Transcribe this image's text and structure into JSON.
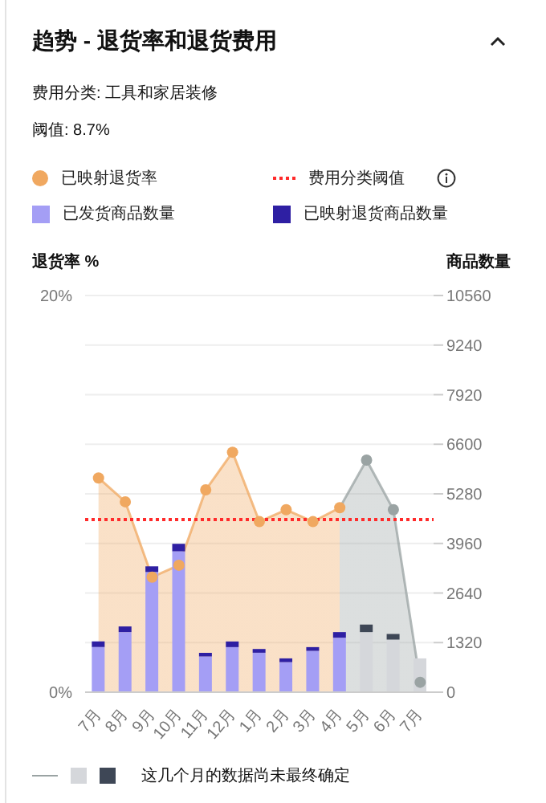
{
  "chart_data": {
    "type": "bar",
    "title": "趋势 - 退货率和退货费用",
    "subtitle": "费用分类: 工具和家居装修",
    "annotations": [
      "阈值: 8.7%",
      "这几个月的数据尚未最终确定"
    ],
    "ylabel": "退货率 %",
    "y2label": "商品数量",
    "categories": [
      "7月",
      "8月",
      "9月",
      "10月",
      "11月",
      "12月",
      "1月",
      "2月",
      "3月",
      "4月",
      "5月",
      "6月",
      "7月"
    ],
    "series": [
      {
        "name": "已映射退货率",
        "type": "area",
        "color": "#f0a860",
        "colors": [
          "#f0a860",
          "#f0a860",
          "#f0a860",
          "#f0a860",
          "#f0a860",
          "#f0a860",
          "#f0a860",
          "#f0a860",
          "#f0a860",
          "#f0a860",
          "#9aa3a3",
          "#9aa3a3",
          "#9aa3a3"
        ],
        "values": [
          10.8,
          9.6,
          5.8,
          6.4,
          10.2,
          12.1,
          8.6,
          9.2,
          8.6,
          9.3,
          11.7,
          9.2,
          0.5
        ]
      },
      {
        "name": "已发货商品数量",
        "axis": "y2",
        "color": "#a49ef5",
        "colors": [
          "#a49ef5",
          "#a49ef5",
          "#a49ef5",
          "#a49ef5",
          "#a49ef5",
          "#a49ef5",
          "#a49ef5",
          "#a49ef5",
          "#a49ef5",
          "#a49ef5",
          "#d5d7db",
          "#d5d7db",
          "#d5d7db"
        ],
        "values": [
          1200,
          1600,
          3200,
          3750,
          950,
          1200,
          1050,
          800,
          1100,
          1450,
          1600,
          1400,
          900
        ]
      },
      {
        "name": "已映射退货商品数量",
        "axis": "y2",
        "color": "#2e1fa3",
        "colors": [
          "#2e1fa3",
          "#2e1fa3",
          "#2e1fa3",
          "#2e1fa3",
          "#2e1fa3",
          "#2e1fa3",
          "#2e1fa3",
          "#2e1fa3",
          "#2e1fa3",
          "#2e1fa3",
          "#3e4756",
          "#3e4756",
          "#3e4756"
        ],
        "values": [
          150,
          150,
          150,
          200,
          100,
          150,
          100,
          100,
          100,
          150,
          200,
          150,
          null
        ]
      }
    ],
    "stacked": true,
    "ylim": [
      0,
      20
    ],
    "yticks": [
      {
        "value": 0,
        "label": "0%"
      },
      {
        "value": 20,
        "label": "20%"
      }
    ],
    "y2lim": [
      0,
      10560
    ],
    "y2ticks": [
      0,
      1320,
      2640,
      3960,
      5280,
      6600,
      7920,
      9240,
      10560
    ],
    "ref_lines": [
      {
        "axis": "y",
        "value": 8.7,
        "label": "费用分类阈值",
        "color": "#ff2a2a",
        "line_style": "dotted"
      }
    ],
    "grid": "y",
    "legend": "top",
    "marker": "circle"
  }
}
